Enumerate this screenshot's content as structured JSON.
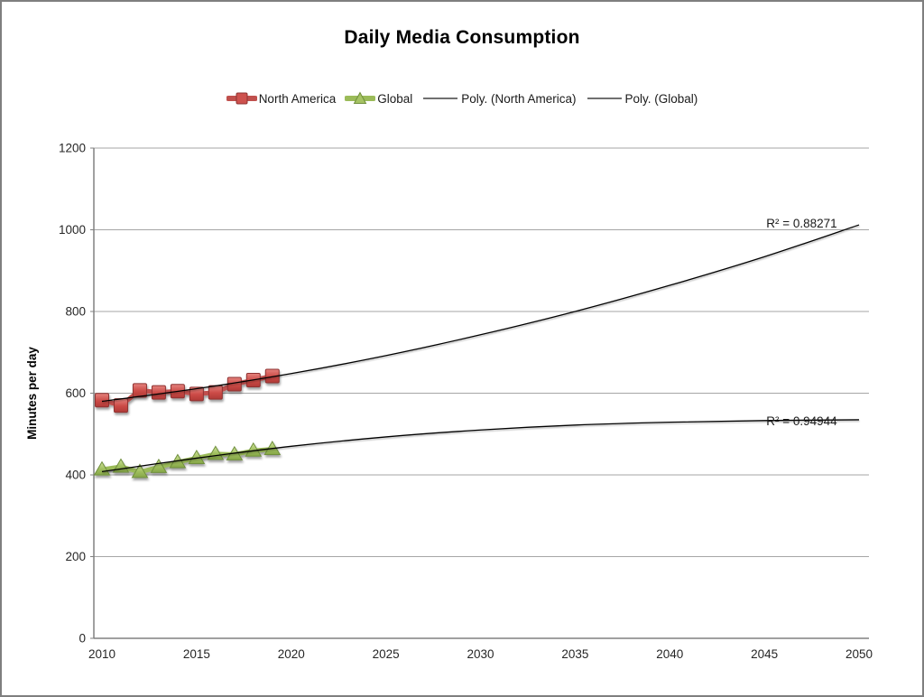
{
  "title": "Daily Media Consumption",
  "legend": [
    {
      "label": "North America",
      "marker": "square",
      "color": "#C0504D"
    },
    {
      "label": "Global",
      "marker": "triangle",
      "color": "#9BBB59"
    },
    {
      "label": "Poly. (North America)",
      "marker": "line",
      "color": "#1a1a1a"
    },
    {
      "label": "Poly. (Global)",
      "marker": "line",
      "color": "#1a1a1a"
    }
  ],
  "colors": {
    "north_america": "#C0504D",
    "north_america_dark": "#8E3331",
    "global": "#9BBB59",
    "global_dark": "#6F8F3C",
    "gridline": "#A6A6A6",
    "axis": "#808080",
    "trendline": "#000000"
  },
  "chart_data": {
    "type": "line",
    "title": "Daily Media Consumption",
    "xlabel": "",
    "ylabel": "Minutes per day",
    "xlim": [
      2010,
      2050
    ],
    "ylim": [
      0,
      1200
    ],
    "x_ticks": [
      2010,
      2015,
      2020,
      2025,
      2030,
      2035,
      2040,
      2045,
      2050
    ],
    "y_ticks": [
      0,
      200,
      400,
      600,
      800,
      1000,
      1200
    ],
    "grid": "horizontal",
    "legend_position": "top",
    "x": [
      2010,
      2011,
      2012,
      2013,
      2014,
      2015,
      2016,
      2017,
      2018,
      2019
    ],
    "series": [
      {
        "name": "North America",
        "marker": "square",
        "color": "#C0504D",
        "values": [
          583,
          570,
          607,
          602,
          605,
          598,
          602,
          622,
          632,
          642
        ]
      },
      {
        "name": "Global",
        "marker": "triangle",
        "color": "#9BBB59",
        "values": [
          413,
          420,
          407,
          419,
          431,
          441,
          451,
          450,
          459,
          463
        ]
      }
    ],
    "trendlines": [
      {
        "name": "Poly. (North America)",
        "x": [
          2010,
          2015,
          2020,
          2025,
          2030,
          2035,
          2040,
          2045,
          2050
        ],
        "values": [
          580,
          611,
          648,
          692,
          743,
          800,
          864,
          934,
          1012
        ],
        "r_squared": "R² = 0.88271",
        "annotation": {
          "x": 2045.1,
          "y": 1014
        }
      },
      {
        "name": "Poly. (Global)",
        "x": [
          2010,
          2015,
          2020,
          2025,
          2030,
          2035,
          2040,
          2045,
          2050
        ],
        "values": [
          408,
          441,
          470,
          493,
          510,
          522,
          529,
          533,
          535
        ],
        "r_squared": "R² = 0.94944",
        "annotation": {
          "x": 2045.1,
          "y": 530
        }
      }
    ]
  }
}
